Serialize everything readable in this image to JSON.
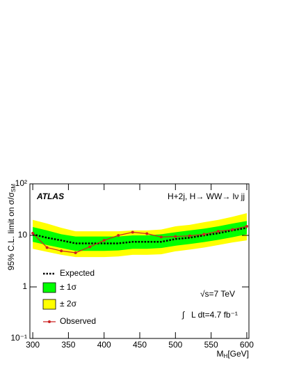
{
  "chart_data": {
    "type": "line",
    "xlabel": "M",
    "xlabel_sub": "H",
    "xlabel_unit": "[GeV]",
    "ylabel": "95% C.L. limit on σ/σ",
    "ylabel_sub": "SM",
    "annotations": [
      "ATLAS",
      "H+2j, H→ WW→ lν jj",
      "√s=7 TeV",
      "∫",
      "L dt=4.7 fb⁻¹"
    ],
    "x": [
      300,
      320,
      340,
      360,
      380,
      400,
      420,
      440,
      460,
      480,
      500,
      520,
      540,
      560,
      580,
      600
    ],
    "xlim": [
      296,
      603
    ],
    "xticks": [
      300,
      350,
      400,
      450,
      500,
      550,
      600
    ],
    "ylim": [
      0.1,
      100
    ],
    "yticks": [
      {
        "value": 0.1,
        "label": "10⁻¹"
      },
      1,
      10,
      {
        "value": 100,
        "label": "10²"
      }
    ],
    "log_y": true,
    "bands": [
      {
        "name": "± 2σ",
        "color": "#ffff00",
        "upper": [
          20,
          17,
          14,
          12,
          12,
          12,
          12,
          12.5,
          12.5,
          13,
          15,
          16,
          18,
          20,
          23,
          27
        ],
        "lower": [
          5.5,
          4.8,
          4.2,
          3.8,
          3.8,
          3.8,
          3.9,
          4.2,
          4.2,
          4.3,
          4.9,
          5.3,
          5.8,
          6.5,
          7.3,
          8
        ]
      },
      {
        "name": "± 1σ",
        "color": "#00ff00",
        "upper": [
          14.5,
          12.5,
          10.5,
          9.5,
          9.5,
          9.5,
          9.5,
          10,
          10,
          10.5,
          11.5,
          12.5,
          13.5,
          15,
          17,
          19
        ],
        "lower": [
          7.5,
          6.5,
          5.7,
          5,
          5,
          5,
          5.1,
          5.5,
          5.5,
          5.7,
          6.3,
          6.8,
          7.4,
          8.2,
          9.2,
          10.5
        ]
      }
    ],
    "series": [
      {
        "name": "Expected",
        "color": "#000000",
        "style": "dotted",
        "values": [
          10.5,
          9,
          8,
          7,
          7,
          7,
          7,
          7.5,
          7.5,
          7.5,
          8.5,
          9,
          10,
          11,
          12.5,
          14
        ]
      },
      {
        "name": "Observed",
        "color": "#cc2222",
        "style": "solid",
        "markers": true,
        "values": [
          11,
          5.8,
          5,
          4.6,
          6,
          8,
          10,
          11.5,
          10.8,
          9.3,
          9.5,
          9.8,
          10.5,
          12,
          13,
          15
        ]
      }
    ],
    "legend_order": [
      0,
      1,
      0,
      1
    ]
  }
}
